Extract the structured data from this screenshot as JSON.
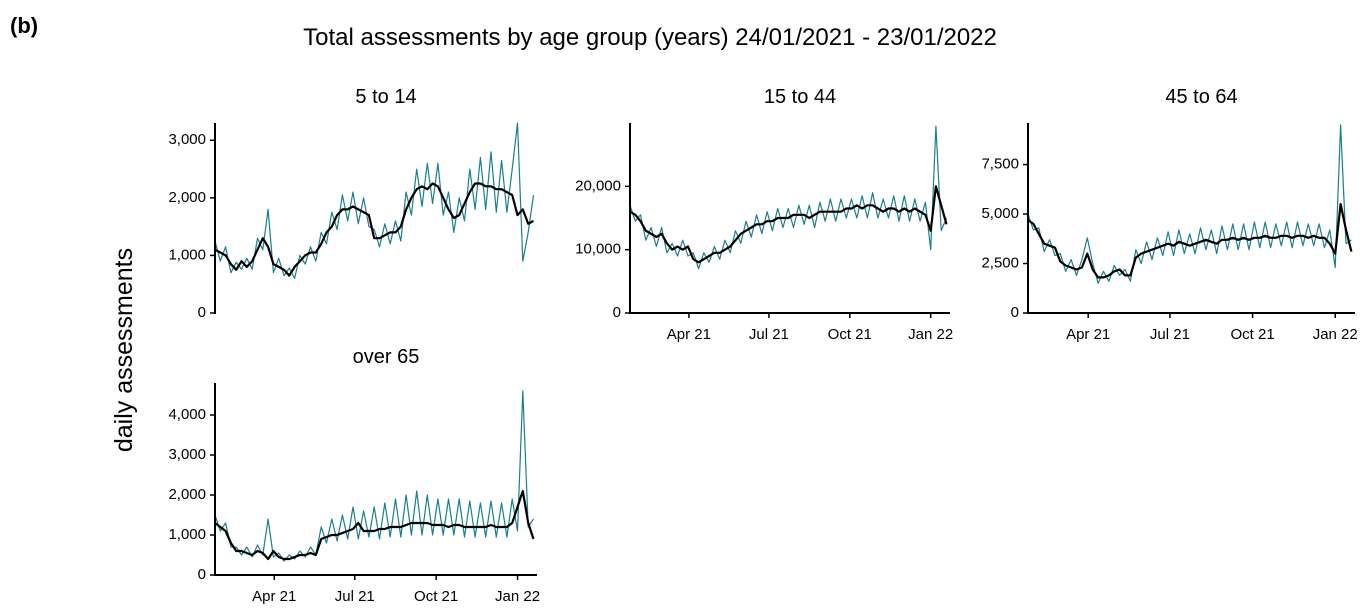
{
  "panel_label": "(b)",
  "title": "Total assessments by age group (years) 24/01/2021 - 23/01/2022",
  "ylabel": "daily assessments",
  "chart_data": [
    {
      "type": "line",
      "title": "5 to 14",
      "x": [
        0,
        6,
        12,
        18,
        24,
        30,
        36,
        42,
        48,
        54,
        60,
        66,
        72,
        78,
        84,
        90,
        96,
        102,
        108,
        114,
        120,
        126,
        132,
        138,
        144,
        150,
        156,
        162,
        168,
        174,
        180,
        186,
        192,
        198,
        204,
        210,
        216,
        222,
        228,
        234,
        240,
        246,
        252,
        258,
        264,
        270,
        276,
        282,
        288,
        294,
        300,
        306,
        312,
        318,
        324,
        330,
        336,
        342,
        348,
        354,
        360
      ],
      "xlim": [
        0,
        364
      ],
      "ylim": [
        0,
        3300
      ],
      "yticks": [
        0,
        {
          "value": 1000,
          "label": "1,000"
        },
        {
          "value": 2000,
          "label": "2,000"
        },
        {
          "value": 3000,
          "label": "3,000"
        }
      ],
      "series": [
        {
          "color": "#1a7f8e",
          "values": [
            1250,
            900,
            1150,
            700,
            880,
            760,
            950,
            760,
            1300,
            1100,
            1800,
            700,
            950,
            650,
            780,
            600,
            1000,
            850,
            1150,
            900,
            1400,
            1200,
            1750,
            1450,
            2050,
            1600,
            2100,
            1550,
            2000,
            1500,
            1450,
            1150,
            1550,
            1200,
            1600,
            1250,
            2100,
            1700,
            2500,
            1850,
            2600,
            1900,
            2600,
            1700,
            2100,
            1400,
            2000,
            1600,
            2500,
            1800,
            2700,
            1800,
            2800,
            1750,
            2650,
            1750,
            2500,
            3300,
            900,
            1400,
            2050
          ]
        },
        {
          "color": "#000000",
          "values": [
            1100,
            1050,
            1000,
            850,
            750,
            900,
            800,
            900,
            1100,
            1300,
            1150,
            850,
            800,
            750,
            650,
            800,
            900,
            1000,
            1050,
            1050,
            1200,
            1400,
            1500,
            1700,
            1800,
            1800,
            1850,
            1800,
            1750,
            1700,
            1300,
            1300,
            1350,
            1400,
            1400,
            1500,
            1800,
            2000,
            2150,
            2200,
            2150,
            2250,
            2200,
            2000,
            1800,
            1650,
            1700,
            1900,
            2100,
            2250,
            2250,
            2200,
            2200,
            2150,
            2150,
            2100,
            2050,
            1700,
            1800,
            1550,
            1600
          ]
        }
      ]
    },
    {
      "type": "line",
      "title": "15 to 44",
      "x": [
        0,
        6,
        12,
        18,
        24,
        30,
        36,
        42,
        48,
        54,
        60,
        66,
        72,
        78,
        84,
        90,
        96,
        102,
        108,
        114,
        120,
        126,
        132,
        138,
        144,
        150,
        156,
        162,
        168,
        174,
        180,
        186,
        192,
        198,
        204,
        210,
        216,
        222,
        228,
        234,
        240,
        246,
        252,
        258,
        264,
        270,
        276,
        282,
        288,
        294,
        300,
        306,
        312,
        318,
        324,
        330,
        336,
        342,
        348,
        354,
        360
      ],
      "xlim": [
        0,
        364
      ],
      "xticks": [
        {
          "value": 67,
          "label": "Apr 21"
        },
        {
          "value": 158,
          "label": "Jul 21"
        },
        {
          "value": 250,
          "label": "Oct 21"
        },
        {
          "value": 342,
          "label": "Jan 22"
        }
      ],
      "ylim": [
        0,
        30000
      ],
      "yticks": [
        0,
        {
          "value": 10000,
          "label": "10,000"
        },
        {
          "value": 20000,
          "label": "20,000"
        }
      ],
      "series": [
        {
          "color": "#1a7f8e",
          "values": [
            17000,
            14500,
            15500,
            11500,
            13500,
            10500,
            13500,
            9500,
            11000,
            9000,
            11500,
            9000,
            9500,
            7000,
            9500,
            8000,
            10500,
            8500,
            11500,
            9500,
            13000,
            11000,
            14500,
            12000,
            15500,
            12500,
            16000,
            13000,
            16500,
            13500,
            16500,
            13500,
            17000,
            14000,
            17000,
            13500,
            17500,
            14500,
            18000,
            14500,
            18000,
            15000,
            18000,
            15000,
            18500,
            15000,
            19000,
            15000,
            18000,
            15000,
            18500,
            14500,
            18500,
            14500,
            18000,
            14500,
            17500,
            10000,
            29500,
            13000,
            15000
          ]
        },
        {
          "color": "#000000",
          "values": [
            16000,
            15500,
            14500,
            13000,
            12500,
            12000,
            12500,
            11000,
            10000,
            10500,
            10000,
            10500,
            8500,
            8000,
            8500,
            9000,
            9500,
            9500,
            10000,
            10500,
            11500,
            12500,
            13000,
            13500,
            14000,
            14000,
            14500,
            14500,
            15000,
            15000,
            15000,
            15500,
            15500,
            15500,
            15000,
            15500,
            16000,
            16000,
            16000,
            16000,
            16000,
            16500,
            16500,
            17000,
            16500,
            17000,
            17000,
            16500,
            16000,
            16500,
            16500,
            16000,
            16500,
            16000,
            16500,
            16000,
            15500,
            13000,
            20000,
            17000,
            14000
          ]
        }
      ]
    },
    {
      "type": "line",
      "title": "45 to 64",
      "x": [
        0,
        6,
        12,
        18,
        24,
        30,
        36,
        42,
        48,
        54,
        60,
        66,
        72,
        78,
        84,
        90,
        96,
        102,
        108,
        114,
        120,
        126,
        132,
        138,
        144,
        150,
        156,
        162,
        168,
        174,
        180,
        186,
        192,
        198,
        204,
        210,
        216,
        222,
        228,
        234,
        240,
        246,
        252,
        258,
        264,
        270,
        276,
        282,
        288,
        294,
        300,
        306,
        312,
        318,
        324,
        330,
        336,
        342,
        348,
        354,
        360
      ],
      "xlim": [
        0,
        364
      ],
      "xticks": [
        {
          "value": 67,
          "label": "Apr 21"
        },
        {
          "value": 158,
          "label": "Jul 21"
        },
        {
          "value": 250,
          "label": "Oct 21"
        },
        {
          "value": 342,
          "label": "Jan 22"
        }
      ],
      "ylim": [
        0,
        9600
      ],
      "yticks": [
        0,
        {
          "value": 2500,
          "label": "2,500"
        },
        {
          "value": 5000,
          "label": "5,000"
        },
        {
          "value": 7500,
          "label": "7,500"
        }
      ],
      "series": [
        {
          "color": "#1a7f8e",
          "values": [
            5000,
            4200,
            4300,
            3100,
            3700,
            2900,
            3000,
            2100,
            2700,
            1900,
            2700,
            3800,
            2500,
            1500,
            2100,
            1600,
            2400,
            1900,
            2200,
            1600,
            3200,
            2500,
            3600,
            2700,
            3800,
            2900,
            4100,
            2900,
            4200,
            3000,
            4000,
            3000,
            4300,
            3200,
            4200,
            3000,
            4400,
            3200,
            4500,
            3200,
            4500,
            3200,
            4600,
            3300,
            4600,
            3300,
            4500,
            3400,
            4600,
            3300,
            4600,
            3400,
            4500,
            3400,
            4500,
            3300,
            4200,
            2300,
            9500,
            3500,
            3700
          ]
        },
        {
          "color": "#000000",
          "values": [
            4700,
            4500,
            4000,
            3500,
            3400,
            3300,
            2600,
            2400,
            2300,
            2200,
            2300,
            3000,
            2200,
            1800,
            1800,
            1900,
            2100,
            2200,
            1900,
            1900,
            2800,
            3000,
            3100,
            3200,
            3300,
            3400,
            3500,
            3400,
            3600,
            3500,
            3400,
            3500,
            3600,
            3700,
            3600,
            3500,
            3700,
            3700,
            3800,
            3700,
            3800,
            3700,
            3800,
            3800,
            3900,
            3800,
            3800,
            3900,
            3900,
            3800,
            3900,
            3900,
            3800,
            3900,
            3800,
            3800,
            3500,
            3000,
            5500,
            4200,
            3100
          ]
        }
      ]
    },
    {
      "type": "line",
      "title": "over 65",
      "x": [
        0,
        6,
        12,
        18,
        24,
        30,
        36,
        42,
        48,
        54,
        60,
        66,
        72,
        78,
        84,
        90,
        96,
        102,
        108,
        114,
        120,
        126,
        132,
        138,
        144,
        150,
        156,
        162,
        168,
        174,
        180,
        186,
        192,
        198,
        204,
        210,
        216,
        222,
        228,
        234,
        240,
        246,
        252,
        258,
        264,
        270,
        276,
        282,
        288,
        294,
        300,
        306,
        312,
        318,
        324,
        330,
        336,
        342,
        348,
        354,
        360
      ],
      "xlim": [
        0,
        364
      ],
      "xticks": [
        {
          "value": 67,
          "label": "Apr 21"
        },
        {
          "value": 158,
          "label": "Jul 21"
        },
        {
          "value": 250,
          "label": "Oct 21"
        },
        {
          "value": 342,
          "label": "Jan 22"
        }
      ],
      "ylim": [
        0,
        4800
      ],
      "yticks": [
        0,
        {
          "value": 1000,
          "label": "1,000"
        },
        {
          "value": 2000,
          "label": "2,000"
        },
        {
          "value": 3000,
          "label": "3,000"
        },
        {
          "value": 4000,
          "label": "4,000"
        }
      ],
      "series": [
        {
          "color": "#1a7f8e",
          "values": [
            1500,
            1100,
            1300,
            700,
            700,
            500,
            700,
            450,
            750,
            500,
            1400,
            450,
            550,
            350,
            500,
            400,
            600,
            450,
            700,
            500,
            1200,
            800,
            1400,
            850,
            1500,
            900,
            1700,
            900,
            1600,
            950,
            1700,
            900,
            1800,
            950,
            1900,
            950,
            2000,
            1000,
            2100,
            1000,
            2000,
            1000,
            1900,
            1000,
            1900,
            1000,
            1900,
            950,
            1850,
            950,
            1800,
            950,
            1850,
            950,
            1800,
            950,
            1900,
            1100,
            4600,
            1200,
            1400
          ]
        },
        {
          "color": "#000000",
          "values": [
            1300,
            1200,
            1100,
            800,
            600,
            600,
            550,
            500,
            600,
            550,
            400,
            600,
            450,
            400,
            400,
            450,
            500,
            500,
            550,
            500,
            900,
            950,
            1000,
            1000,
            1050,
            1100,
            1150,
            1300,
            1100,
            1100,
            1100,
            1150,
            1150,
            1200,
            1200,
            1200,
            1250,
            1300,
            1300,
            1300,
            1300,
            1250,
            1250,
            1250,
            1200,
            1250,
            1250,
            1200,
            1200,
            1200,
            1200,
            1200,
            1250,
            1200,
            1200,
            1200,
            1300,
            1700,
            2100,
            1300,
            900
          ]
        }
      ]
    }
  ]
}
